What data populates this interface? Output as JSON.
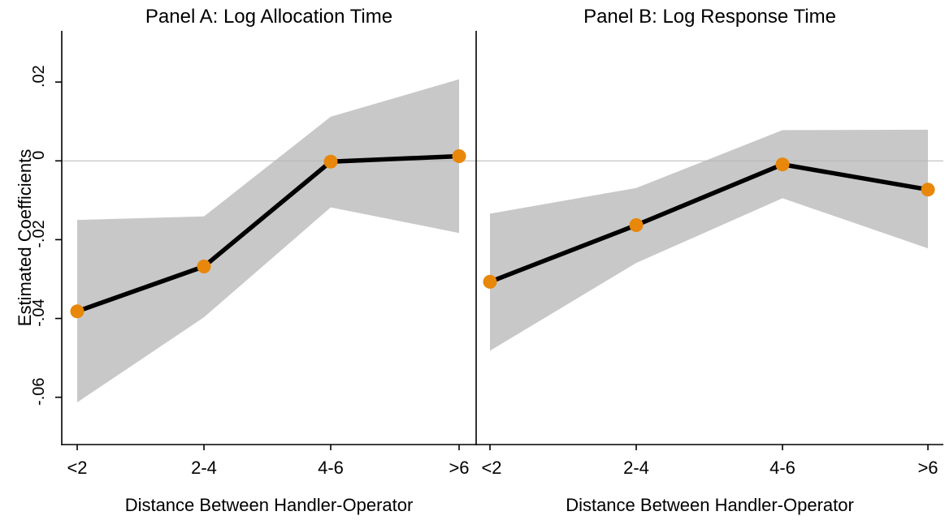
{
  "chart_data": {
    "type": "line",
    "ylabel": "Estimated Coefficients",
    "ylim": [
      -0.072,
      0.033
    ],
    "yticks": [
      {
        "value": 0.02,
        "label": ".02"
      },
      {
        "value": 0,
        "label": "0"
      },
      {
        "value": -0.02,
        "label": "-.02"
      },
      {
        "value": -0.04,
        "label": "-.04"
      },
      {
        "value": -0.06,
        "label": "-.06"
      }
    ],
    "zero_line": true,
    "colors": {
      "point": "#e8870a",
      "band": "#c8c8c8",
      "line": "#000000"
    },
    "panels": [
      {
        "title": "Panel A: Log Allocation Time",
        "xlabel": "Distance Between Handler-Operator",
        "categories": [
          "<2",
          "2-4",
          "4-6",
          ">6"
        ],
        "values": [
          -0.0382,
          -0.0268,
          -0.0002,
          0.0012
        ],
        "ci_lower": [
          -0.0613,
          -0.0397,
          -0.0118,
          -0.0183
        ],
        "ci_upper": [
          -0.015,
          -0.0141,
          0.0112,
          0.0207
        ]
      },
      {
        "title": "Panel B: Log Response Time",
        "xlabel": "Distance Between Handler-Operator",
        "categories": [
          "<2",
          "2-4",
          "4-6",
          ">6"
        ],
        "values": [
          -0.0307,
          -0.0163,
          -0.0009,
          -0.0073
        ],
        "ci_lower": [
          -0.0482,
          -0.0259,
          -0.0095,
          -0.0222
        ],
        "ci_upper": [
          -0.0134,
          -0.0069,
          0.0078,
          0.0079
        ]
      }
    ]
  }
}
